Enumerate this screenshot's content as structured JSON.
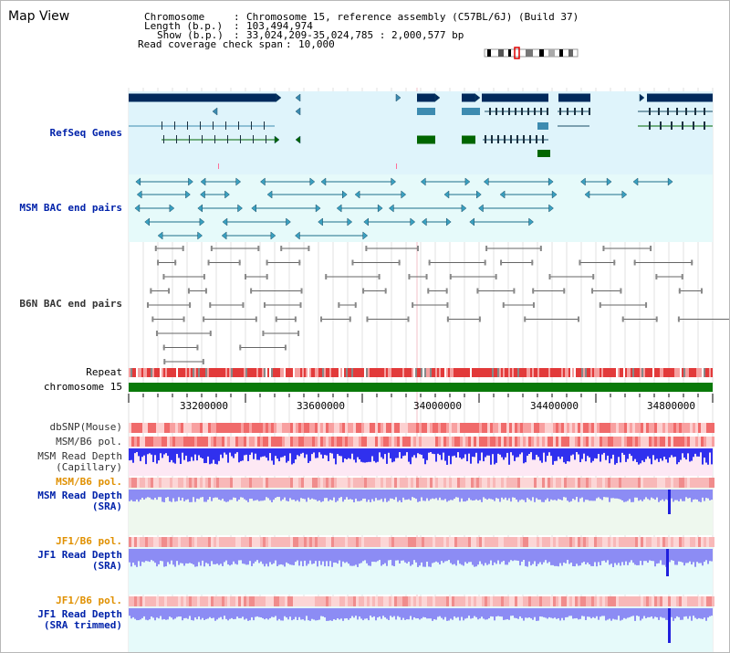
{
  "title": "Map View",
  "header": {
    "chromosome_label": "Chromosome",
    "chromosome_value": "Chromosome 15, reference assembly (C57BL/6J) (Build 37)",
    "length_label": "Length (b.p.)",
    "length_value": "103,494,974",
    "show_label": "Show (b.p.)",
    "show_value": "33,024,209-35,024,785 : 2,000,577 bp",
    "span_label": "Read coverage check span",
    "span_value": "10,000"
  },
  "tracks": {
    "refseq": "RefSeq Genes",
    "msm_bac": "MSM BAC end pairs",
    "b6n_bac": "B6N BAC end pairs",
    "repeat": "Repeat",
    "chromosome": "chromosome 15",
    "dbsnp": "dbSNP(Mouse)",
    "msm_b6_pol_1": "MSM/B6 pol.",
    "msm_read_depth_cap_1": "MSM Read Depth",
    "msm_read_depth_cap_2": "(Capillary)",
    "msm_b6_pol_2": "MSM/B6 pol.",
    "msm_read_depth_sra_1": "MSM Read Depth",
    "msm_read_depth_sra_2": "(SRA)",
    "jf1_b6_pol_1": "JF1/B6 pol.",
    "jf1_read_depth_sra_1": "JF1 Read Depth",
    "jf1_read_depth_sra_2": "(SRA)",
    "jf1_b6_pol_2": "JF1/B6 pol.",
    "jf1_read_depth_trim_1": "JF1 Read Depth",
    "jf1_read_depth_trim_2": "(SRA trimmed)"
  },
  "axis": {
    "ticks": [
      "33200000",
      "33600000",
      "34000000",
      "34400000",
      "34800000"
    ]
  },
  "colors": {
    "refseq_bg": "#dff4fb",
    "msm_bac_bg": "#e6fafa",
    "gene_dark": "#002a5c",
    "gene_mid": "#3d8bb0",
    "gene_green": "#006600",
    "repeat_red": "#e23a3a",
    "chrom_green": "#0a7a0a",
    "depth_blue": "#3030ee",
    "depth_light": "#8c8cf4",
    "label_blue": "#0022aa",
    "label_orange": "#e09000"
  }
}
